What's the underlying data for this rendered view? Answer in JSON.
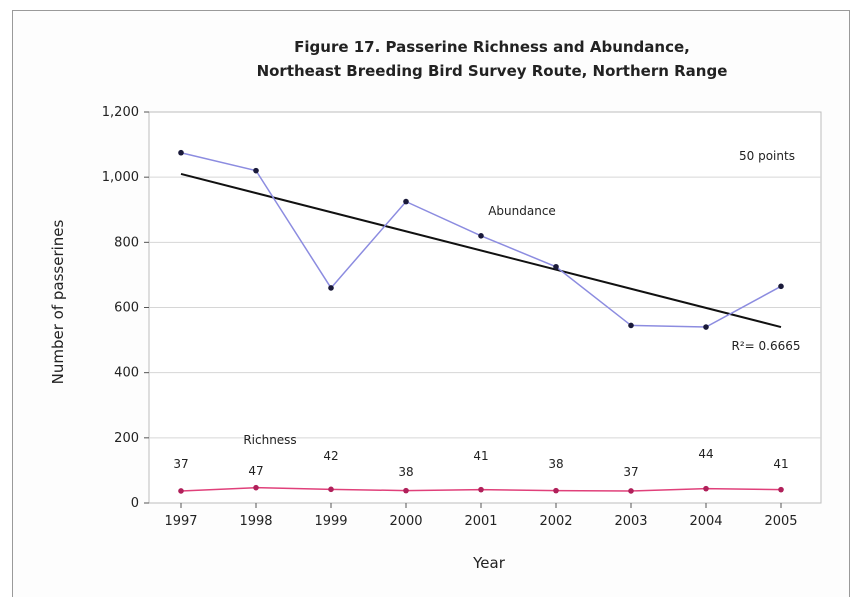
{
  "chart_data": {
    "type": "line",
    "title": "Figure 17. Passerine Richness and Abundance,",
    "subtitle": "Northeast Breeding Bird Survey Route, Northern Range",
    "xlabel": "Year",
    "ylabel": "Number of passerines",
    "x": [
      1997,
      1998,
      1999,
      2000,
      2001,
      2002,
      2003,
      2004,
      2005
    ],
    "ylim": [
      0,
      1200
    ],
    "yticks": [
      0,
      200,
      400,
      600,
      800,
      1000,
      1200
    ],
    "ytick_labels": [
      "0",
      "200",
      "400",
      "600",
      "800",
      "1,000",
      "1,200"
    ],
    "grid": true,
    "series": [
      {
        "name": "Abundance",
        "color": "#8c8ce0",
        "values": [
          1075,
          1020,
          660,
          925,
          820,
          725,
          545,
          540,
          665
        ]
      },
      {
        "name": "Richness",
        "color": "#e0407a",
        "values": [
          37,
          47,
          42,
          38,
          41,
          38,
          37,
          44,
          41
        ],
        "data_labels": [
          "37",
          "47",
          "42",
          "38",
          "41",
          "38",
          "37",
          "44",
          "41"
        ]
      }
    ],
    "trendline": {
      "color": "#111111",
      "start": [
        1997,
        1010
      ],
      "end": [
        2005,
        540
      ],
      "label": "R²= 0.6665"
    },
    "annotation": "50 points"
  }
}
